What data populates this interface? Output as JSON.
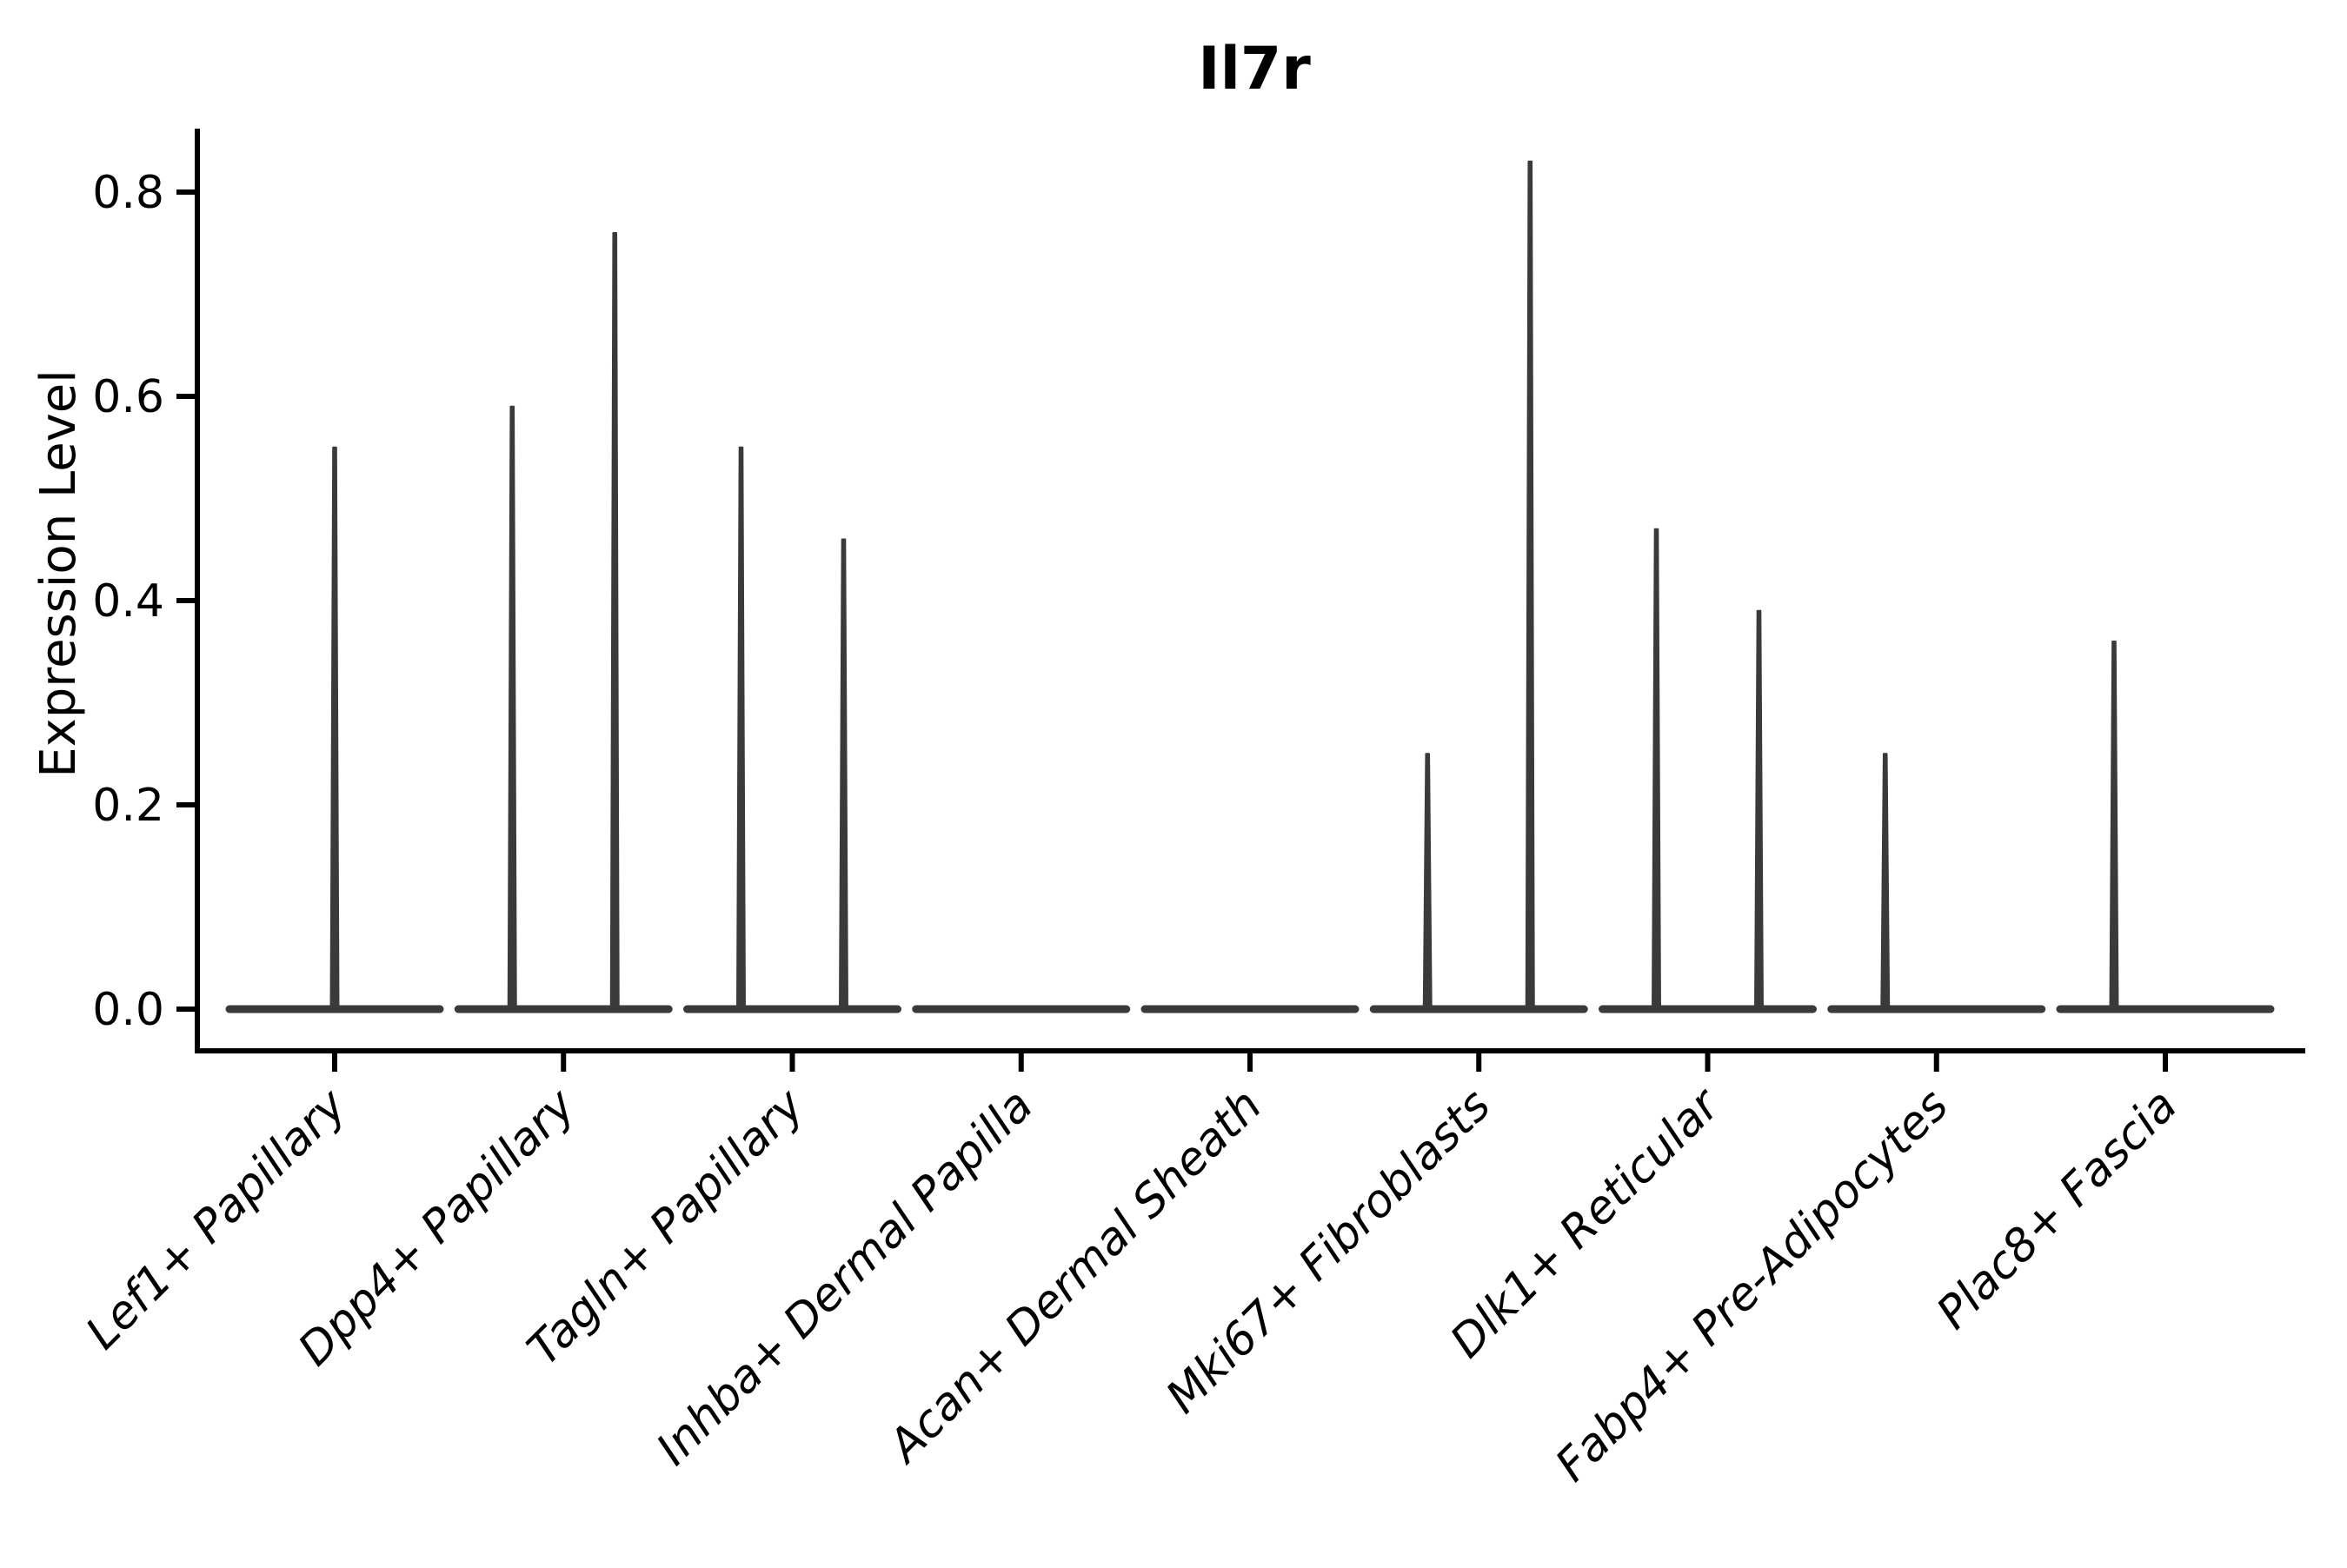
{
  "figure": {
    "background": "#ffffff",
    "text_color": "#000000",
    "violin_color": "#3a3a3a"
  },
  "chart_data": {
    "type": "violin",
    "title": "Il7r",
    "xlabel": "",
    "ylabel": "Expression Level",
    "ylim": [
      0,
      0.88
    ],
    "yticks": [
      0.0,
      0.2,
      0.4,
      0.6,
      0.8
    ],
    "ytick_labels": [
      "0.0",
      "0.2",
      "0.4",
      "0.6",
      "0.8"
    ],
    "grid": false,
    "legend": "none",
    "xtick_rotation_degrees": 45,
    "categories": [
      "Lef1+ Papillary",
      "Dpp4+ Papillary",
      "Tagln+ Papillary",
      "Inhba+ Dermal Papilla",
      "Acan+ Dermal Sheath",
      "Mki67+ Fibroblasts",
      "Dlk1+ Reticular",
      "Fabp4+ Pre-Adipocytes",
      "Plac8+ Fascia"
    ],
    "baseline_value": 0.0,
    "violins": [
      {
        "label": "Lef1+ Papillary",
        "spikes": [
          {
            "pos": "center",
            "height": 0.55
          }
        ]
      },
      {
        "label": "Dpp4+ Papillary",
        "spikes": [
          {
            "pos": "left",
            "height": 0.59
          },
          {
            "pos": "right",
            "height": 0.76
          }
        ]
      },
      {
        "label": "Tagln+ Papillary",
        "spikes": [
          {
            "pos": "left",
            "height": 0.55
          },
          {
            "pos": "right",
            "height": 0.46
          }
        ]
      },
      {
        "label": "Inhba+ Dermal Papilla",
        "spikes": []
      },
      {
        "label": "Acan+ Dermal Sheath",
        "spikes": []
      },
      {
        "label": "Mki67+ Fibroblasts",
        "spikes": [
          {
            "pos": "left",
            "height": 0.25
          },
          {
            "pos": "right",
            "height": 0.83
          }
        ]
      },
      {
        "label": "Dlk1+ Reticular",
        "spikes": [
          {
            "pos": "left",
            "height": 0.47
          },
          {
            "pos": "right",
            "height": 0.39
          }
        ]
      },
      {
        "label": "Fabp4+ Pre-Adipocytes",
        "spikes": [
          {
            "pos": "left",
            "height": 0.25
          }
        ]
      },
      {
        "label": "Plac8+ Fascia",
        "spikes": [
          {
            "pos": "left",
            "height": 0.36
          }
        ]
      }
    ]
  }
}
